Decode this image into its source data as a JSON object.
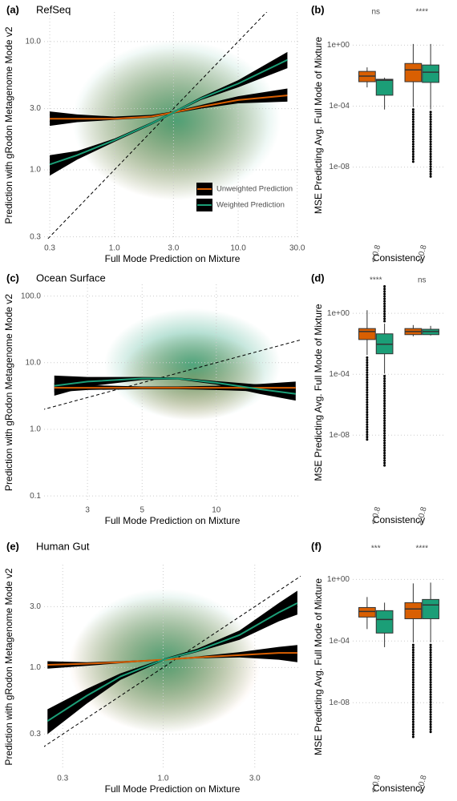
{
  "chart_data": [
    {
      "type": "line",
      "panel_label": "(a)",
      "title": "RefSeq",
      "x_label": "Full Mode Prediction on Mixture",
      "y_label": "Prediction with gRodon Metagenome Mode v2",
      "log_x": true,
      "log_y": true,
      "grid": true,
      "legend": "bottom-right",
      "xlim": [
        0.27,
        32
      ],
      "ylim": [
        0.29,
        17
      ],
      "xticks": [
        0.3,
        {
          "value": 1,
          "label": "1.0"
        },
        {
          "value": 3,
          "label": "3.0"
        },
        {
          "value": 10,
          "label": "10.0"
        },
        {
          "value": 30,
          "label": "30.0"
        }
      ],
      "yticks": [
        0.3,
        {
          "value": 1,
          "label": "1.0"
        },
        {
          "value": 3,
          "label": "3.0"
        },
        {
          "value": 10,
          "label": "10.0"
        }
      ],
      "x": [
        0.3,
        0.5,
        1,
        2,
        3,
        5,
        10,
        25
      ],
      "series": [
        {
          "name": "Unweighted Prediction",
          "color": "#d95f02",
          "values": [
            2.5,
            2.5,
            2.5,
            2.6,
            2.8,
            3.1,
            3.5,
            3.8
          ],
          "lower": [
            2.2,
            2.35,
            2.45,
            2.55,
            2.75,
            3.0,
            3.3,
            3.4
          ],
          "upper": [
            2.85,
            2.7,
            2.6,
            2.68,
            2.85,
            3.2,
            3.75,
            4.3
          ]
        },
        {
          "name": "Weighted Prediction",
          "color": "#1b9e77",
          "values": [
            1.1,
            1.3,
            1.7,
            2.3,
            2.8,
            3.6,
            4.7,
            7.2
          ],
          "lower": [
            0.9,
            1.2,
            1.65,
            2.25,
            2.75,
            3.5,
            4.4,
            6.2
          ],
          "upper": [
            1.3,
            1.4,
            1.75,
            2.35,
            2.85,
            3.7,
            5.0,
            8.3
          ]
        }
      ]
    },
    {
      "type": "box",
      "panel_label": "(b)",
      "x_label": "Consistency",
      "y_label": "MSE Predicting Avg. Full Mode of Mixture",
      "log_y": true,
      "grid": true,
      "ylim": [
        2e-13,
        150
      ],
      "yticks": [
        {
          "value": 1,
          "label": "1e+00"
        },
        {
          "value": 0.0001,
          "label": "1e-04"
        },
        {
          "value": 1e-08,
          "label": "1e-08"
        }
      ],
      "categories": [
        "< 0.8",
        "> 0.8"
      ],
      "annotations": [
        "ns",
        "****"
      ],
      "series": [
        {
          "color": "#d95f02",
          "whisker_low": [
            0.0017,
            8.7e-05
          ],
          "q1": [
            0.004,
            0.004
          ],
          "median": [
            0.0093,
            0.024
          ],
          "q3": [
            0.019,
            0.063
          ],
          "whisker_high": [
            0.035,
            1.2
          ],
          "outlier_min": [
            null,
            1.6e-08
          ],
          "outlier_max": [
            null,
            null
          ]
        },
        {
          "color": "#1b9e77",
          "whisker_low": [
            6e-05,
            6e-05
          ],
          "q1": [
            0.00052,
            0.0036
          ],
          "median": [
            0.005,
            0.017
          ],
          "q3": [
            0.0058,
            0.05
          ],
          "whisker_high": [
            0.0074,
            1.2
          ],
          "outlier_min": [
            null,
            1.8e-09
          ],
          "outlier_max": [
            null,
            null
          ]
        }
      ]
    },
    {
      "type": "line",
      "panel_label": "(c)",
      "title": "Ocean Surface",
      "x_label": "Full Mode Prediction on Mixture",
      "y_label": "Prediction with gRodon Metagenome Mode v2",
      "log_x": true,
      "log_y": true,
      "grid": true,
      "xlim": [
        2.0,
        22
      ],
      "ylim": [
        0.085,
        150
      ],
      "xticks": [
        3,
        5,
        10
      ],
      "yticks": [
        0.1,
        {
          "value": 1,
          "label": "1.0"
        },
        {
          "value": 10,
          "label": "10.0"
        },
        {
          "value": 100,
          "label": "100.0"
        }
      ],
      "x": [
        2.2,
        3,
        5,
        7,
        10,
        15,
        21
      ],
      "series": [
        {
          "color": "#d95f02",
          "values": [
            4.2,
            4.2,
            4.2,
            4.2,
            4.2,
            4.2,
            4.2
          ],
          "lower": [
            3.6,
            3.9,
            4.0,
            4.0,
            3.9,
            3.7,
            3.5
          ],
          "upper": [
            5.0,
            4.6,
            4.4,
            4.4,
            4.5,
            4.8,
            5.2
          ]
        },
        {
          "color": "#1b9e77",
          "values": [
            4.5,
            5.2,
            5.8,
            5.8,
            5.0,
            4.0,
            3.4
          ],
          "lower": [
            3.2,
            4.4,
            5.5,
            5.6,
            4.7,
            3.4,
            2.7
          ],
          "upper": [
            6.4,
            6.1,
            6.1,
            6.0,
            5.3,
            4.7,
            4.3
          ]
        }
      ]
    },
    {
      "type": "box",
      "panel_label": "(d)",
      "x_label": "Consistency",
      "y_label": "MSE Predicting Avg. Full Mode of Mixture",
      "log_y": true,
      "grid": true,
      "ylim": [
        5e-13,
        80
      ],
      "yticks": [
        {
          "value": 1,
          "label": "1e+00"
        },
        {
          "value": 0.0001,
          "label": "1e-04"
        },
        {
          "value": 1e-08,
          "label": "1e-08"
        }
      ],
      "categories": [
        "< 0.8",
        "> 0.8"
      ],
      "annotations": [
        "****",
        "ns"
      ],
      "series": [
        {
          "color": "#d95f02",
          "whisker_low": [
            0.0018,
            0.031
          ],
          "q1": [
            0.019,
            0.04
          ],
          "median": [
            0.064,
            0.064
          ],
          "q3": [
            0.1,
            0.1
          ],
          "whisker_high": [
            1.6,
            0.17
          ],
          "outlier_min": [
            5e-09,
            null
          ],
          "outlier_max": [
            null,
            null
          ]
        },
        {
          "color": "#1b9e77",
          "whisker_low": [
            0.00011,
            0.035
          ],
          "q1": [
            0.0022,
            0.04
          ],
          "median": [
            0.0094,
            0.064
          ],
          "q3": [
            0.045,
            0.09
          ],
          "whisker_high": [
            0.21,
            0.15
          ],
          "outlier_min": [
            1e-10,
            null
          ],
          "outlier_max": [
            59,
            null
          ]
        }
      ]
    },
    {
      "type": "line",
      "panel_label": "(e)",
      "title": "Human Gut",
      "x_label": "Full Mode Prediction on Mixture",
      "y_label": "Prediction with gRodon Metagenome Mode v2",
      "log_x": true,
      "log_y": true,
      "grid": true,
      "xlim": [
        0.24,
        5.2
      ],
      "ylim": [
        0.16,
        6.4
      ],
      "xticks": [
        0.3,
        {
          "value": 1,
          "label": "1.0"
        },
        {
          "value": 3,
          "label": "3.0"
        }
      ],
      "yticks": [
        0.3,
        {
          "value": 1,
          "label": "1.0"
        },
        {
          "value": 3,
          "label": "3.0"
        }
      ],
      "x": [
        0.25,
        0.4,
        0.6,
        1,
        1.5,
        2.5,
        4,
        5
      ],
      "series": [
        {
          "color": "#d95f02",
          "values": [
            1.05,
            1.07,
            1.1,
            1.15,
            1.2,
            1.25,
            1.3,
            1.3
          ],
          "lower": [
            0.98,
            1.03,
            1.08,
            1.14,
            1.18,
            1.2,
            1.15,
            1.1
          ],
          "upper": [
            1.12,
            1.1,
            1.12,
            1.16,
            1.22,
            1.32,
            1.45,
            1.5
          ]
        },
        {
          "color": "#1b9e77",
          "values": [
            0.38,
            0.6,
            0.85,
            1.15,
            1.35,
            1.8,
            2.7,
            3.2
          ],
          "lower": [
            0.3,
            0.52,
            0.8,
            1.13,
            1.32,
            1.65,
            2.3,
            2.6
          ],
          "upper": [
            0.47,
            0.68,
            0.9,
            1.17,
            1.4,
            1.95,
            3.2,
            4.0
          ]
        }
      ]
    },
    {
      "type": "box",
      "panel_label": "(f)",
      "x_label": "Consistency",
      "y_label": "MSE Predicting Avg. Full Mode of Mixture",
      "log_y": true,
      "grid": true,
      "ylim": [
        5e-13,
        9
      ],
      "yticks": [
        {
          "value": 1,
          "label": "1e+00"
        },
        {
          "value": 0.0001,
          "label": "1e-04"
        },
        {
          "value": 1e-08,
          "label": "1e-08"
        }
      ],
      "categories": [
        "< 0.8",
        "> 0.8"
      ],
      "annotations": [
        "***",
        "****"
      ],
      "series": [
        {
          "color": "#d95f02",
          "whisker_low": [
            0.0006,
            8e-05
          ],
          "q1": [
            0.0036,
            0.0028
          ],
          "median": [
            0.0083,
            0.012
          ],
          "q3": [
            0.015,
            0.031
          ],
          "whisker_high": [
            0.072,
            0.55
          ],
          "outlier_min": [
            null,
            6e-11
          ],
          "outlier_max": [
            null,
            null
          ]
        },
        {
          "color": "#1b9e77",
          "whisker_low": [
            4e-05,
            8e-05
          ],
          "q1": [
            0.00033,
            0.0028
          ],
          "median": [
            0.0025,
            0.022
          ],
          "q3": [
            0.0094,
            0.05
          ],
          "whisker_high": [
            0.031,
            0.62
          ],
          "outlier_min": [
            null,
            1e-10
          ],
          "outlier_max": [
            null,
            null
          ]
        }
      ]
    }
  ]
}
